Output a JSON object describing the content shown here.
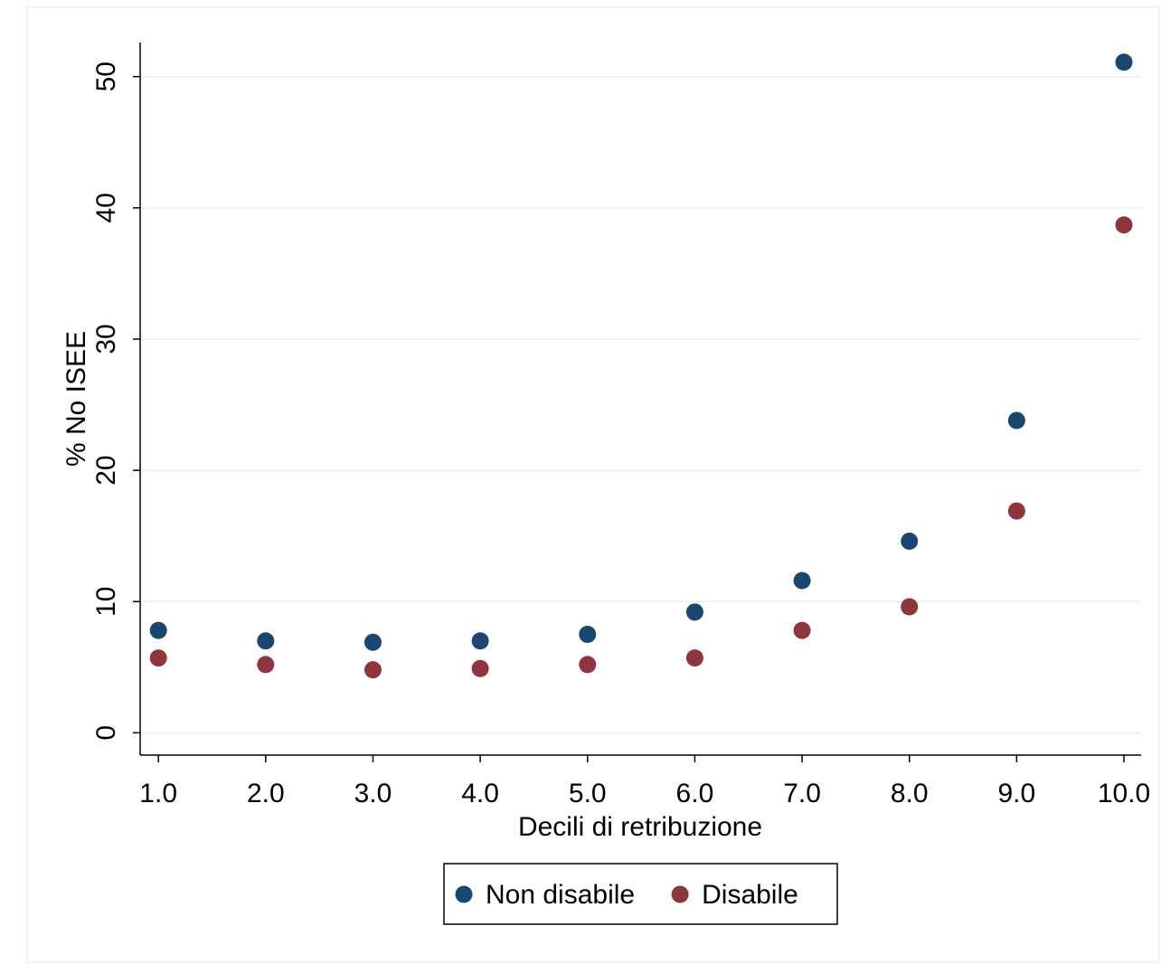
{
  "chart_data": {
    "type": "scatter",
    "x_label": "Decili di retribuzione",
    "y_label": "% No ISEE",
    "x": [
      1,
      2,
      3,
      4,
      5,
      6,
      7,
      8,
      9,
      10
    ],
    "series": [
      {
        "name": "Non disabile",
        "color": "#1a476f",
        "values": [
          7.8,
          7.0,
          6.9,
          7.0,
          7.5,
          9.2,
          11.6,
          14.6,
          23.8,
          51.1
        ]
      },
      {
        "name": "Disabile",
        "color": "#90353b",
        "values": [
          5.7,
          5.2,
          4.8,
          4.9,
          5.2,
          5.7,
          7.8,
          9.6,
          16.9,
          38.7
        ]
      }
    ],
    "xlim": [
      0.83,
      10.16
    ],
    "ylim": [
      -1.7,
      52.6
    ],
    "xticks": [
      {
        "value": 1,
        "label": "1.0"
      },
      {
        "value": 2,
        "label": "2.0"
      },
      {
        "value": 3,
        "label": "3.0"
      },
      {
        "value": 4,
        "label": "4.0"
      },
      {
        "value": 5,
        "label": "5.0"
      },
      {
        "value": 6,
        "label": "6.0"
      },
      {
        "value": 7,
        "label": "7.0"
      },
      {
        "value": 8,
        "label": "8.0"
      },
      {
        "value": 9,
        "label": "9.0"
      },
      {
        "value": 10,
        "label": "10.0"
      }
    ],
    "yticks": [
      0,
      10,
      20,
      30,
      40,
      50
    ],
    "grid": true,
    "legend": "bottom"
  }
}
